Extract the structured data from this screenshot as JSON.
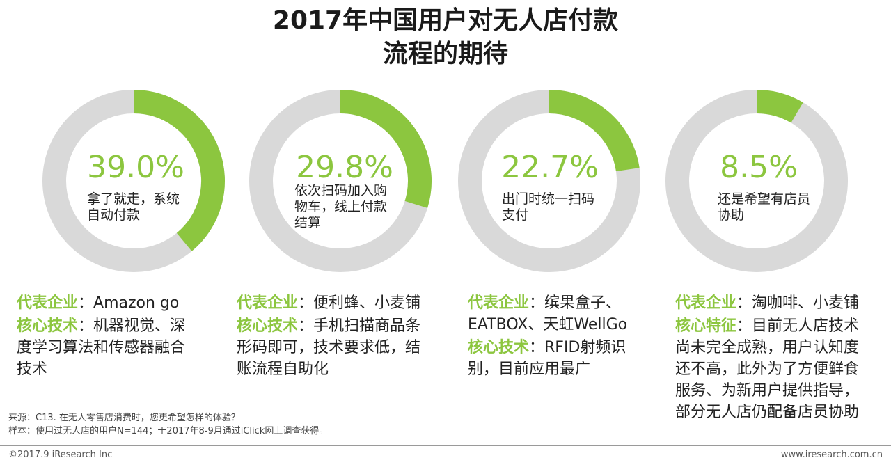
{
  "title": {
    "line1": "2017年中国用户对无人店付款",
    "line2": "流程的期待"
  },
  "colors": {
    "accent": "#8cc63f",
    "track": "#d9d9d9"
  },
  "chart_data": {
    "type": "pie",
    "title": "2017年中国用户对无人店付款流程的期待",
    "variant": "donut",
    "series": [
      {
        "label": "拿了就走，系统自动付款",
        "value": 39.0,
        "display": "39.0%"
      },
      {
        "label": "依次扫码加入购物车，线上付款结算",
        "value": 29.8,
        "display": "29.8%"
      },
      {
        "label": "出门时统一扫码支付",
        "value": 22.7,
        "display": "22.7%"
      },
      {
        "label": "还是希望有店员协助",
        "value": 8.5,
        "display": "8.5%"
      }
    ]
  },
  "donuts": [
    {
      "pct_text": "39.0%",
      "desc_lines": [
        "拿了就走，系统",
        "自动付款"
      ]
    },
    {
      "pct_text": "29.8%",
      "desc_lines": [
        "依次扫码加入购",
        "物车，线上付款",
        "结算"
      ]
    },
    {
      "pct_text": "22.7%",
      "desc_lines": [
        "出门时统一扫码",
        "支付"
      ]
    },
    {
      "pct_text": "8.5%",
      "desc_lines": [
        "还是希望有店员",
        "协助"
      ]
    }
  ],
  "columns": [
    {
      "rep_label": "代表企业",
      "rep_text": "：Amazon go",
      "core_label": "核心技术",
      "core_lines": [
        "：机器视觉、深",
        "度学习算法和传感器融合",
        "技术"
      ]
    },
    {
      "rep_label": "代表企业",
      "rep_text": "：便利蜂、小麦铺",
      "core_label": "核心技术",
      "core_lines": [
        "：手机扫描商品条",
        "形码即可，技术要求低，结",
        "账流程自助化"
      ]
    },
    {
      "rep_label": "代表企业",
      "rep_lines": [
        "：缤果盒子、",
        "EATBOX、天虹WellGo"
      ],
      "core_label": "核心技术",
      "core_lines": [
        "：RFID射频识",
        "别，目前应用最广"
      ]
    },
    {
      "rep_label": "代表企业",
      "rep_text": "：淘咖啡、小麦铺",
      "core_label": "核心特征",
      "core_lines": [
        "：目前无人店技术",
        "尚未完全成熟，用户认知度",
        "还不高，此外为了方便鲜食",
        "服务、为新用户提供指导，",
        "部分无人店仍配备店员协助"
      ]
    }
  ],
  "footnote": {
    "source": "来源：C13. 在无人零售店消费时，您更希望怎样的体验？",
    "sample": "样本：使用过无人店的用户N=144；于2017年8-9月通过iClick网上调查获得。"
  },
  "footer": {
    "copyright": "©2017.9 iResearch Inc",
    "website": "www.iresearch.com.cn"
  }
}
